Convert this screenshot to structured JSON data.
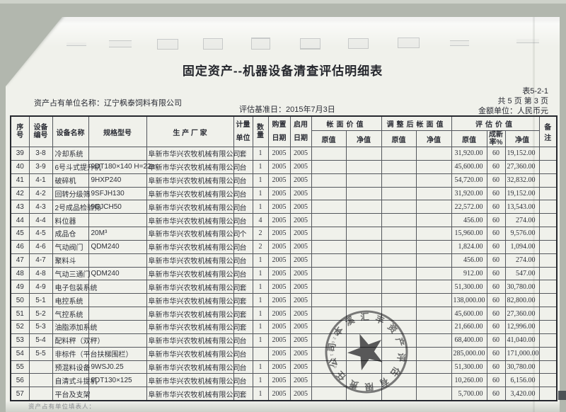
{
  "document": {
    "title": "固定资产--机器设备清查评估明细表",
    "form_code": "表5-2-1",
    "page_info": "共 5 页 第 3 页",
    "currency_note": "金额单位：人民币元",
    "owner_line": "资产占有单位名称：辽宁枫泰饲料有限公司",
    "base_date": "评估基准日：2015年7月3日",
    "footer_note": "资产占有单位填表人："
  },
  "table": {
    "h": {
      "no": "序\n号",
      "eq": "设备\n编号",
      "name": "设备名称",
      "spec": "规格型号",
      "maker": "生 产 厂 家",
      "unit": "计量\n单位",
      "qty": "数\n量",
      "buy": "购置\n日期",
      "use": "启用\n日期",
      "book": "帐面价值",
      "adj": "调整后帐面值",
      "eval": "评估价值",
      "orig": "原值",
      "net": "净值",
      "rate": "成新\n率%",
      "note": "备注"
    },
    "rows": [
      [
        "39",
        "3-8",
        "冷却系统",
        "",
        "阜新市华兴农牧机械有限公司",
        "套",
        "1",
        "2005",
        "2005",
        "",
        "",
        "",
        "",
        "31,920.00",
        "60",
        "19,152.00",
        ""
      ],
      [
        "40",
        "3-9",
        "6号斗式提升机",
        "9DT180×140 H=22m",
        "阜新市华兴农牧机械有限公司",
        "台",
        "1",
        "2005",
        "2005",
        "",
        "",
        "",
        "",
        "45,600.00",
        "60",
        "27,360.00",
        ""
      ],
      [
        "41",
        "4-1",
        "破碎机",
        "9HXP240",
        "阜新市华兴农牧机械有限公司",
        "台",
        "1",
        "2005",
        "2005",
        "",
        "",
        "",
        "",
        "54,720.00",
        "60",
        "32,832.00",
        ""
      ],
      [
        "42",
        "4-2",
        "回转分级筛",
        "9SFJH130",
        "阜新市华兴农牧机械有限公司",
        "台",
        "1",
        "2005",
        "2005",
        "",
        "",
        "",
        "",
        "31,920.00",
        "60",
        "19,152.00",
        ""
      ],
      [
        "43",
        "4-3",
        "2号成品检验筛",
        "9CJCH50",
        "阜新市华兴农牧机械有限公司",
        "台",
        "1",
        "2005",
        "2005",
        "",
        "",
        "",
        "",
        "22,572.00",
        "60",
        "13,543.00",
        ""
      ],
      [
        "44",
        "4-4",
        "料位器",
        "",
        "阜新市华兴农牧机械有限公司",
        "台",
        "4",
        "2005",
        "2005",
        "",
        "",
        "",
        "",
        "456.00",
        "60",
        "274.00",
        ""
      ],
      [
        "45",
        "4-5",
        "成品仓",
        "20M³",
        "阜新市华兴农牧机械有限公司",
        "个",
        "2",
        "2005",
        "2005",
        "",
        "",
        "",
        "",
        "15,960.00",
        "60",
        "9,576.00",
        ""
      ],
      [
        "46",
        "4-6",
        "气动阀门",
        "QDM240",
        "阜新市华兴农牧机械有限公司",
        "台",
        "2",
        "2005",
        "2005",
        "",
        "",
        "",
        "",
        "1,824.00",
        "60",
        "1,094.00",
        ""
      ],
      [
        "47",
        "4-7",
        "聚料斗",
        "",
        "阜新市华兴农牧机械有限公司",
        "台",
        "1",
        "2005",
        "2005",
        "",
        "",
        "",
        "",
        "456.00",
        "60",
        "274.00",
        ""
      ],
      [
        "48",
        "4-8",
        "气动三通门",
        "QDM240",
        "阜新市华兴农牧机械有限公司",
        "台",
        "1",
        "2005",
        "2005",
        "",
        "",
        "",
        "",
        "912.00",
        "60",
        "547.00",
        ""
      ],
      [
        "49",
        "4-9",
        "电子包装系统",
        "",
        "阜新市华兴农牧机械有限公司",
        "套",
        "1",
        "2005",
        "2005",
        "",
        "",
        "",
        "",
        "51,300.00",
        "60",
        "30,780.00",
        ""
      ],
      [
        "50",
        "5-1",
        "电控系统",
        "",
        "阜新市华兴农牧机械有限公司",
        "套",
        "1",
        "2005",
        "2005",
        "",
        "",
        "",
        "",
        "138,000.00",
        "60",
        "82,800.00",
        ""
      ],
      [
        "51",
        "5-2",
        "气控系统",
        "",
        "阜新市华兴农牧机械有限公司",
        "套",
        "1",
        "2005",
        "2005",
        "",
        "",
        "",
        "",
        "45,600.00",
        "60",
        "27,360.00",
        ""
      ],
      [
        "52",
        "5-3",
        "油脂添加系统",
        "",
        "阜新市华兴农牧机械有限公司",
        "套",
        "1",
        "2005",
        "2005",
        "",
        "",
        "",
        "",
        "21,660.00",
        "60",
        "12,996.00",
        ""
      ],
      [
        "53",
        "5-4",
        "配料秤（双秤）",
        "",
        "阜新市华兴农牧机械有限公司",
        "台",
        "1",
        "2005",
        "2005",
        "",
        "",
        "",
        "",
        "68,400.00",
        "60",
        "41,040.00",
        ""
      ],
      [
        "54",
        "5-5",
        "非标件（平台扶梯围栏）",
        "",
        "阜新市华兴农牧机械有限公司",
        "台",
        "",
        "2005",
        "2005",
        "",
        "",
        "",
        "",
        "285,000.00",
        "60",
        "171,000.00",
        ""
      ],
      [
        "55",
        "",
        "预混料设备",
        "9WSJ0.25",
        "阜新市华兴农牧机械有限公司",
        "台",
        "1",
        "2005",
        "2005",
        "",
        "",
        "",
        "",
        "51,300.00",
        "60",
        "30,780.00",
        ""
      ],
      [
        "56",
        "",
        "自清式斗提机",
        "9DT130×125",
        "阜新市华兴农牧机械有限公司",
        "台",
        "1",
        "2005",
        "2005",
        "",
        "",
        "",
        "",
        "10,260.00",
        "60",
        "6,156.00",
        ""
      ],
      [
        "57",
        "",
        "平台及支架",
        "",
        "阜新市华兴农牧机械有限公司",
        "套",
        "1",
        "2005",
        "2005",
        "",
        "",
        "",
        "",
        "5,700.00",
        "60",
        "3,420.00",
        ""
      ]
    ]
  },
  "stamp": {
    "text": "本溪汇丰资产评估有限责任公司",
    "code": "0601200298",
    "ink_color": "#26262a"
  }
}
